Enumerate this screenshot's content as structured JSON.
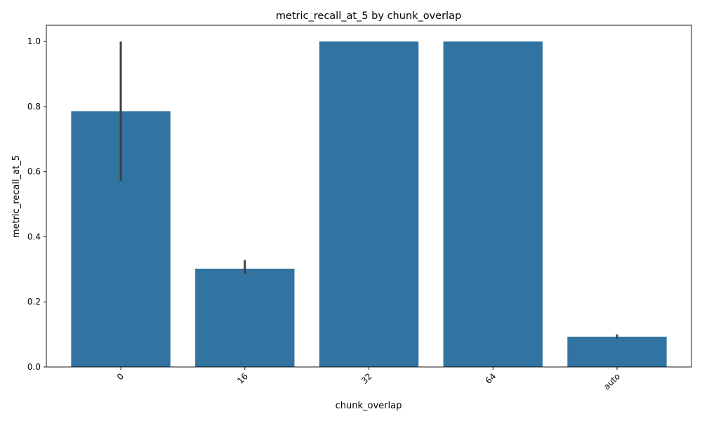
{
  "chart_data": {
    "type": "bar",
    "title": "metric_recall_at_5 by chunk_overlap",
    "xlabel": "chunk_overlap",
    "ylabel": "metric_recall_at_5",
    "categories": [
      "0",
      "16",
      "32",
      "64",
      "auto"
    ],
    "values": [
      0.786,
      0.302,
      1.0,
      1.0,
      0.093
    ],
    "error_low": [
      0.571,
      0.286,
      1.0,
      1.0,
      0.087
    ],
    "error_high": [
      1.0,
      0.329,
      1.0,
      1.0,
      0.1
    ],
    "ylim": [
      0,
      1.05
    ],
    "yticks": [
      "0.0",
      "0.2",
      "0.4",
      "0.6",
      "0.8",
      "1.0"
    ],
    "bar_color": "#3274a1",
    "error_color": "#404040",
    "grid": false,
    "legend": "none"
  }
}
